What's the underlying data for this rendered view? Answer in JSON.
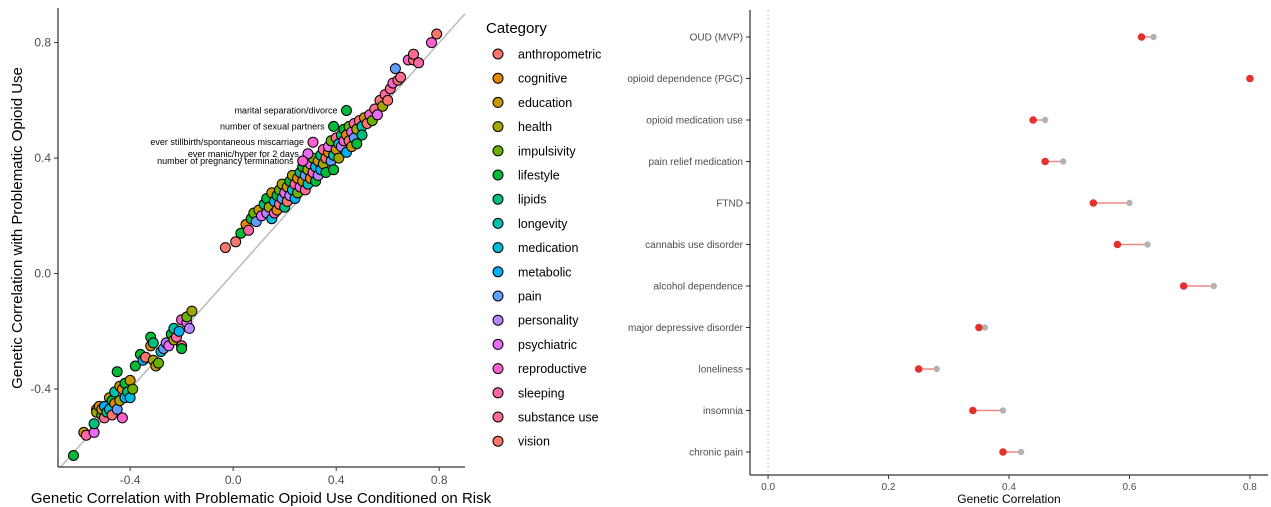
{
  "chart_data": [
    {
      "type": "scatter",
      "xlabel": "Genetic Correlation with Problematic Opioid Use Conditioned on Risk",
      "ylabel": "Genetic Correlation with Problematic Opioid Use",
      "xlim": [
        -0.68,
        0.9
      ],
      "ylim": [
        -0.67,
        0.92
      ],
      "xticks": [
        -0.4,
        0.0,
        0.4,
        0.8
      ],
      "yticks": [
        -0.4,
        0.0,
        0.4,
        0.8
      ],
      "xtick_labels": [
        "-0.4",
        "0.0",
        "0.4",
        "0.8"
      ],
      "ytick_labels": [
        "-0.4",
        "0.0",
        "0.4",
        "0.8"
      ],
      "grid": false,
      "reference_line": "y = x",
      "legend": {
        "title": "Category",
        "placement": "right",
        "entries": [
          {
            "name": "anthropometric",
            "color": "#F8766D"
          },
          {
            "name": "cognitive",
            "color": "#E58700"
          },
          {
            "name": "education",
            "color": "#C99800"
          },
          {
            "name": "health",
            "color": "#A3A500"
          },
          {
            "name": "impulsivity",
            "color": "#6BB100"
          },
          {
            "name": "lifestyle",
            "color": "#00BA38"
          },
          {
            "name": "lipids",
            "color": "#00BF7D"
          },
          {
            "name": "longevity",
            "color": "#00C0AF"
          },
          {
            "name": "medication",
            "color": "#00BCD8"
          },
          {
            "name": "metabolic",
            "color": "#00B0F6"
          },
          {
            "name": "pain",
            "color": "#619CFF"
          },
          {
            "name": "personality",
            "color": "#B983FF"
          },
          {
            "name": "psychiatric",
            "color": "#E76BF3"
          },
          {
            "name": "reproductive",
            "color": "#FD61D1"
          },
          {
            "name": "sleeping",
            "color": "#FF67A4"
          },
          {
            "name": "substance use",
            "color": "#FF6C91"
          },
          {
            "name": "vision",
            "color": "#F8766D"
          }
        ]
      },
      "annotations": [
        {
          "text": "marital separation/divorce",
          "x": 0.44,
          "y": 0.565,
          "category": 5
        },
        {
          "text": "number of sexual partners",
          "x": 0.39,
          "y": 0.51,
          "category": 5
        },
        {
          "text": "ever stillbirth/spontaneous miscarriage",
          "x": 0.31,
          "y": 0.455,
          "category": 13
        },
        {
          "text": "ever manic/hyper for 2 days",
          "x": 0.29,
          "y": 0.415,
          "category": 12
        },
        {
          "text": "number of pregnancy terminations",
          "x": 0.27,
          "y": 0.39,
          "category": 13
        }
      ],
      "points": [
        [
          -0.62,
          -0.63,
          5
        ],
        [
          -0.58,
          -0.55,
          2
        ],
        [
          -0.57,
          -0.56,
          14
        ],
        [
          -0.54,
          -0.55,
          12
        ],
        [
          -0.54,
          -0.52,
          6
        ],
        [
          -0.53,
          -0.47,
          2
        ],
        [
          -0.53,
          -0.48,
          3
        ],
        [
          -0.52,
          -0.46,
          1
        ],
        [
          -0.51,
          -0.49,
          4
        ],
        [
          -0.51,
          -0.47,
          2
        ],
        [
          -0.5,
          -0.5,
          15
        ],
        [
          -0.5,
          -0.46,
          9
        ],
        [
          -0.49,
          -0.48,
          6
        ],
        [
          -0.48,
          -0.43,
          2
        ],
        [
          -0.48,
          -0.47,
          8
        ],
        [
          -0.47,
          -0.44,
          5
        ],
        [
          -0.47,
          -0.49,
          0
        ],
        [
          -0.46,
          -0.45,
          1
        ],
        [
          -0.46,
          -0.41,
          7
        ],
        [
          -0.45,
          -0.34,
          5
        ],
        [
          -0.45,
          -0.47,
          10
        ],
        [
          -0.44,
          -0.39,
          2
        ],
        [
          -0.44,
          -0.44,
          3
        ],
        [
          -0.43,
          -0.4,
          1
        ],
        [
          -0.43,
          -0.5,
          13
        ],
        [
          -0.42,
          -0.43,
          9
        ],
        [
          -0.42,
          -0.38,
          5
        ],
        [
          -0.41,
          -0.41,
          6
        ],
        [
          -0.4,
          -0.43,
          8
        ],
        [
          -0.4,
          -0.37,
          2
        ],
        [
          -0.39,
          -0.4,
          4
        ],
        [
          -0.38,
          -0.32,
          5
        ],
        [
          -0.36,
          -0.28,
          5
        ],
        [
          -0.35,
          -0.3,
          9
        ],
        [
          -0.34,
          -0.29,
          16
        ],
        [
          -0.32,
          -0.25,
          1
        ],
        [
          -0.32,
          -0.22,
          5
        ],
        [
          -0.31,
          -0.3,
          3
        ],
        [
          -0.31,
          -0.24,
          6
        ],
        [
          -0.3,
          -0.32,
          2
        ],
        [
          -0.29,
          -0.31,
          4
        ],
        [
          -0.28,
          -0.27,
          8
        ],
        [
          -0.27,
          -0.26,
          10
        ],
        [
          -0.26,
          -0.24,
          11
        ],
        [
          -0.25,
          -0.25,
          12
        ],
        [
          -0.24,
          -0.21,
          5
        ],
        [
          -0.23,
          -0.19,
          7
        ],
        [
          -0.23,
          -0.23,
          3
        ],
        [
          -0.22,
          -0.22,
          14
        ],
        [
          -0.21,
          -0.2,
          9
        ],
        [
          -0.2,
          -0.25,
          15
        ],
        [
          -0.2,
          -0.16,
          13
        ],
        [
          -0.18,
          -0.17,
          12
        ],
        [
          -0.18,
          -0.15,
          4
        ],
        [
          -0.17,
          -0.19,
          11
        ],
        [
          -0.16,
          -0.13,
          3
        ],
        [
          -0.2,
          -0.26,
          5
        ],
        [
          -0.03,
          0.09,
          0
        ],
        [
          0.01,
          0.11,
          16
        ],
        [
          0.03,
          0.14,
          5
        ],
        [
          0.05,
          0.17,
          1
        ],
        [
          0.06,
          0.15,
          14
        ],
        [
          0.07,
          0.19,
          5
        ],
        [
          0.08,
          0.21,
          4
        ],
        [
          0.09,
          0.18,
          10
        ],
        [
          0.1,
          0.22,
          2
        ],
        [
          0.11,
          0.2,
          12
        ],
        [
          0.12,
          0.24,
          6
        ],
        [
          0.13,
          0.26,
          5
        ],
        [
          0.13,
          0.21,
          11
        ],
        [
          0.14,
          0.23,
          3
        ],
        [
          0.15,
          0.19,
          8
        ],
        [
          0.15,
          0.28,
          2
        ],
        [
          0.16,
          0.25,
          9
        ],
        [
          0.16,
          0.21,
          13
        ],
        [
          0.17,
          0.22,
          1
        ],
        [
          0.17,
          0.27,
          5
        ],
        [
          0.18,
          0.24,
          15
        ],
        [
          0.18,
          0.29,
          4
        ],
        [
          0.19,
          0.26,
          10
        ],
        [
          0.19,
          0.31,
          3
        ],
        [
          0.2,
          0.28,
          12
        ],
        [
          0.2,
          0.23,
          6
        ],
        [
          0.21,
          0.3,
          2
        ],
        [
          0.21,
          0.25,
          16
        ],
        [
          0.22,
          0.32,
          5
        ],
        [
          0.22,
          0.27,
          11
        ],
        [
          0.23,
          0.29,
          8
        ],
        [
          0.23,
          0.34,
          3
        ],
        [
          0.24,
          0.31,
          14
        ],
        [
          0.24,
          0.26,
          9
        ],
        [
          0.25,
          0.33,
          1
        ],
        [
          0.25,
          0.28,
          4
        ],
        [
          0.26,
          0.35,
          6
        ],
        [
          0.26,
          0.3,
          12
        ],
        [
          0.27,
          0.32,
          2
        ],
        [
          0.27,
          0.37,
          5
        ],
        [
          0.28,
          0.34,
          10
        ],
        [
          0.28,
          0.29,
          15
        ],
        [
          0.29,
          0.36,
          3
        ],
        [
          0.29,
          0.31,
          7
        ],
        [
          0.3,
          0.38,
          12
        ],
        [
          0.3,
          0.33,
          1
        ],
        [
          0.31,
          0.35,
          13
        ],
        [
          0.31,
          0.4,
          4
        ],
        [
          0.32,
          0.37,
          8
        ],
        [
          0.32,
          0.32,
          5
        ],
        [
          0.33,
          0.39,
          2
        ],
        [
          0.33,
          0.34,
          11
        ],
        [
          0.34,
          0.41,
          6
        ],
        [
          0.34,
          0.36,
          9
        ],
        [
          0.35,
          0.43,
          14
        ],
        [
          0.35,
          0.38,
          3
        ],
        [
          0.36,
          0.4,
          16
        ],
        [
          0.36,
          0.35,
          5
        ],
        [
          0.37,
          0.42,
          1
        ],
        [
          0.37,
          0.44,
          12
        ],
        [
          0.38,
          0.39,
          10
        ],
        [
          0.38,
          0.46,
          4
        ],
        [
          0.39,
          0.41,
          7
        ],
        [
          0.39,
          0.36,
          5
        ],
        [
          0.4,
          0.43,
          2
        ],
        [
          0.4,
          0.47,
          15
        ],
        [
          0.41,
          0.45,
          8
        ],
        [
          0.41,
          0.4,
          3
        ],
        [
          0.42,
          0.48,
          6
        ],
        [
          0.42,
          0.44,
          11
        ],
        [
          0.43,
          0.46,
          13
        ],
        [
          0.43,
          0.5,
          5
        ],
        [
          0.44,
          0.42,
          9
        ],
        [
          0.44,
          0.48,
          1
        ],
        [
          0.45,
          0.51,
          4
        ],
        [
          0.45,
          0.46,
          16
        ],
        [
          0.46,
          0.49,
          12
        ],
        [
          0.46,
          0.44,
          2
        ],
        [
          0.47,
          0.52,
          14
        ],
        [
          0.47,
          0.47,
          10
        ],
        [
          0.48,
          0.5,
          3
        ],
        [
          0.48,
          0.45,
          5
        ],
        [
          0.49,
          0.53,
          15
        ],
        [
          0.5,
          0.51,
          7
        ],
        [
          0.5,
          0.48,
          6
        ],
        [
          0.51,
          0.54,
          2
        ],
        [
          0.52,
          0.52,
          16
        ],
        [
          0.53,
          0.55,
          13
        ],
        [
          0.54,
          0.53,
          4
        ],
        [
          0.55,
          0.57,
          15
        ],
        [
          0.56,
          0.55,
          12
        ],
        [
          0.57,
          0.6,
          16
        ],
        [
          0.58,
          0.58,
          3
        ],
        [
          0.59,
          0.62,
          14
        ],
        [
          0.6,
          0.6,
          16
        ],
        [
          0.61,
          0.64,
          15
        ],
        [
          0.62,
          0.66,
          13
        ],
        [
          0.63,
          0.71,
          10
        ],
        [
          0.64,
          0.67,
          16
        ],
        [
          0.65,
          0.68,
          15
        ],
        [
          0.68,
          0.74,
          13
        ],
        [
          0.7,
          0.74,
          16
        ],
        [
          0.7,
          0.76,
          15
        ],
        [
          0.72,
          0.73,
          14
        ],
        [
          0.77,
          0.8,
          13
        ],
        [
          0.79,
          0.83,
          16
        ],
        [
          0.44,
          0.565,
          5
        ],
        [
          0.39,
          0.51,
          5
        ],
        [
          0.31,
          0.455,
          13
        ],
        [
          0.29,
          0.415,
          12
        ],
        [
          0.27,
          0.39,
          13
        ]
      ]
    },
    {
      "type": "dot-range",
      "xlabel": "Genetic Correlation",
      "xlim": [
        -0.03,
        0.83
      ],
      "xticks": [
        0.0,
        0.2,
        0.4,
        0.6,
        0.8
      ],
      "xtick_labels": [
        "0.0",
        "0.2",
        "0.4",
        "0.6",
        "0.8"
      ],
      "reference_line": "x = 0 (dotted)",
      "colors": {
        "conditioned": "#E3322C",
        "unconditioned": "#B3B3B3",
        "segment": "#F08A84"
      },
      "categories": [
        "OUD (MVP)",
        "opioid dependence (PGC)",
        "opioid medication use",
        "pain relief medication",
        "FTND",
        "cannabis use disorder",
        "alcohol dependence",
        "major depressive disorder",
        "loneliness",
        "insomnia",
        "chronic pain"
      ],
      "series": [
        {
          "values": [
            0.62,
            0.8,
            0.44,
            0.46,
            0.54,
            0.58,
            0.69,
            0.35,
            0.25,
            0.34,
            0.39
          ]
        },
        {
          "values": [
            0.64,
            0.8,
            0.46,
            0.49,
            0.6,
            0.63,
            0.74,
            0.36,
            0.28,
            0.39,
            0.42
          ]
        }
      ]
    }
  ]
}
